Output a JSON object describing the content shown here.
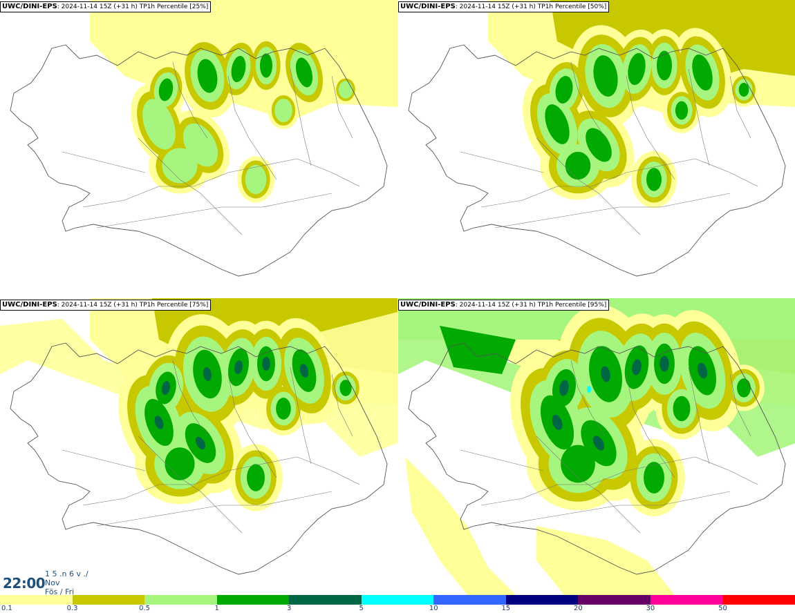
{
  "panels": [
    {
      "model": "UWC/DINI-EPS",
      "run": "2024-11-14 15Z (+31 h)",
      "param": "TP1h Percentile [25%]",
      "level": 0
    },
    {
      "model": "UWC/DINI-EPS",
      "run": "2024-11-14 15Z (+31 h)",
      "param": "TP1h Percentile [50%]",
      "level": 1
    },
    {
      "model": "UWC/DINI-EPS",
      "run": "2024-11-14 15Z (+31 h)",
      "param": "TP1h Percentile [75%]",
      "level": 2
    },
    {
      "model": "UWC/DINI-EPS",
      "run": "2024-11-14 15Z (+31 h)",
      "param": "TP1h Percentile [95%]",
      "level": 3
    }
  ],
  "valid_time": {
    "time": "22:00",
    "line1": "1 5 .n 6 v ./",
    "line2": "Nov",
    "line3": "Fös / Fri"
  },
  "legend": {
    "ticks": [
      "0.1",
      "0.3",
      "0.5",
      "1",
      "3",
      "5",
      "10",
      "15",
      "20",
      "30",
      "50"
    ],
    "colors": [
      "#ffff99",
      "#c8c800",
      "#a6f57e",
      "#00aa00",
      "#006644",
      "#00ffff",
      "#3366ff",
      "#000080",
      "#660066",
      "#ff0099",
      "#ff0000"
    ]
  }
}
